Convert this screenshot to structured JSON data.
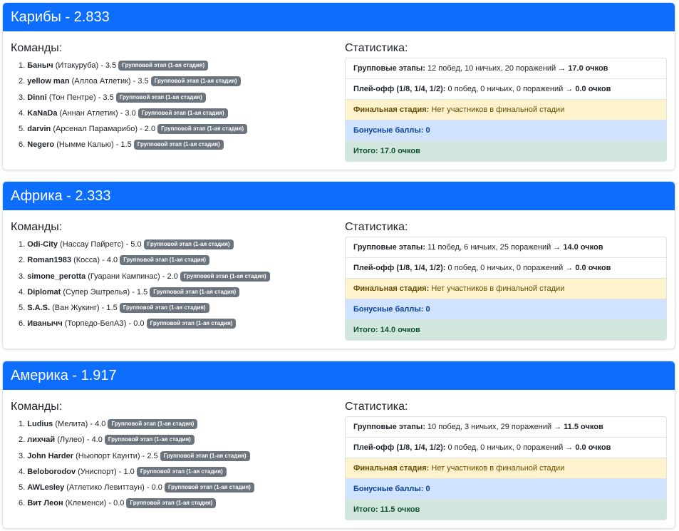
{
  "regions": [
    {
      "title": "Карибы - 2.833",
      "teams_heading": "Команды:",
      "stats_heading": "Статистика:",
      "teams": [
        {
          "num": "1.",
          "name": "Баныч",
          "club": "(Итакуруба)",
          "score": "- 3.5",
          "badge": "Групповой этап (1-ая стадия)"
        },
        {
          "num": "2.",
          "name": "yellow man",
          "club": "(Аллоа Атлетик)",
          "score": "- 3.5",
          "badge": "Групповой этап (1-ая стадия)"
        },
        {
          "num": "3.",
          "name": "Dinni",
          "club": "(Тон Пентре)",
          "score": "- 3.5",
          "badge": "Групповой этап (1-ая стадия)"
        },
        {
          "num": "4.",
          "name": "KaNaDa",
          "club": "(Аннан Атлетик)",
          "score": "- 3.0",
          "badge": "Групповой этап (1-ая стадия)"
        },
        {
          "num": "5.",
          "name": "darvin",
          "club": "(Арсенал Парамарибо)",
          "score": "- 2.0",
          "badge": "Групповой этап (1-ая стадия)"
        },
        {
          "num": "6.",
          "name": "Negero",
          "club": "(Нымме Калью)",
          "score": "- 1.5",
          "badge": "Групповой этап (1-ая стадия)"
        }
      ],
      "stats": {
        "group_label": "Групповые этапы:",
        "group_text": "12 побед, 10 ничьих, 20 поражений →",
        "group_points": "17.0 очков",
        "playoff_label": "Плей-офф (1/8, 1/4, 1/2):",
        "playoff_text": "0 побед, 0 ничьих, 0 поражений →",
        "playoff_points": "0.0 очков",
        "final_label": "Финальная стадия:",
        "final_text": "Нет участников в финальной стадии",
        "bonus_label": "Бонусные баллы:",
        "bonus_value": "0",
        "total_label": "Итого:",
        "total_value": "17.0 очков"
      }
    },
    {
      "title": "Африка - 2.333",
      "teams_heading": "Команды:",
      "stats_heading": "Статистика:",
      "teams": [
        {
          "num": "1.",
          "name": "Odi-City",
          "club": "(Нассау Пайретс)",
          "score": "- 5.0",
          "badge": "Групповой этап (1-ая стадия)"
        },
        {
          "num": "2.",
          "name": "Roman1983",
          "club": "(Косса)",
          "score": "- 4.0",
          "badge": "Групповой этап (1-ая стадия)"
        },
        {
          "num": "3.",
          "name": "simone_perotta",
          "club": "(Гуарани Кампинас)",
          "score": "- 2.0",
          "badge": "Групповой этап (1-ая стадия)"
        },
        {
          "num": "4.",
          "name": "Diplomat",
          "club": "(Супер Эштрелья)",
          "score": "- 1.5",
          "badge": "Групповой этап (1-ая стадия)"
        },
        {
          "num": "5.",
          "name": "S.A.S.",
          "club": "(Ван Жукинг)",
          "score": "- 1.5",
          "badge": "Групповой этап (1-ая стадия)"
        },
        {
          "num": "6.",
          "name": "Иванычч",
          "club": "(Торпедо-БелАЗ)",
          "score": "- 0.0",
          "badge": "Групповой этап (1-ая стадия)"
        }
      ],
      "stats": {
        "group_label": "Групповые этапы:",
        "group_text": "11 побед, 6 ничьих, 25 поражений →",
        "group_points": "14.0 очков",
        "playoff_label": "Плей-офф (1/8, 1/4, 1/2):",
        "playoff_text": "0 побед, 0 ничьих, 0 поражений →",
        "playoff_points": "0.0 очков",
        "final_label": "Финальная стадия:",
        "final_text": "Нет участников в финальной стадии",
        "bonus_label": "Бонусные баллы:",
        "bonus_value": "0",
        "total_label": "Итого:",
        "total_value": "14.0 очков"
      }
    },
    {
      "title": "Америка - 1.917",
      "teams_heading": "Команды:",
      "stats_heading": "Статистика:",
      "teams": [
        {
          "num": "1.",
          "name": "Ludius",
          "club": "(Мелита)",
          "score": "- 4.0",
          "badge": "Групповой этап (1-ая стадия)"
        },
        {
          "num": "2.",
          "name": "лихчай",
          "club": "(Лулео)",
          "score": "- 4.0",
          "badge": "Групповой этап (1-ая стадия)"
        },
        {
          "num": "3.",
          "name": "John Harder",
          "club": "(Ньюпорт Каунти)",
          "score": "- 2.5",
          "badge": "Групповой этап (1-ая стадия)"
        },
        {
          "num": "4.",
          "name": "Beloborodov",
          "club": "(Униспорт)",
          "score": "- 1.0",
          "badge": "Групповой этап (1-ая стадия)"
        },
        {
          "num": "5.",
          "name": "AWLesley",
          "club": "(Атлетико Левиттаун)",
          "score": "- 0.0",
          "badge": "Групповой этап (1-ая стадия)"
        },
        {
          "num": "6.",
          "name": "Вит Леон",
          "club": "(Клеменси)",
          "score": "- 0.0",
          "badge": "Групповой этап (1-ая стадия)"
        }
      ],
      "stats": {
        "group_label": "Групповые этапы:",
        "group_text": "10 побед, 3 ничьих, 29 поражений →",
        "group_points": "11.5 очков",
        "playoff_label": "Плей-офф (1/8, 1/4, 1/2):",
        "playoff_text": "0 побед, 0 ничьих, 0 поражений →",
        "playoff_points": "0.0 очков",
        "final_label": "Финальная стадия:",
        "final_text": "Нет участников в финальной стадии",
        "bonus_label": "Бонусные баллы:",
        "bonus_value": "0",
        "total_label": "Итого:",
        "total_value": "11.5 очков"
      }
    }
  ],
  "colors": {
    "header": "#0d6efd",
    "badge": "#6c757d",
    "warning": "#fff3cd",
    "info": "#cfe2ff",
    "success": "#d1e7dd"
  }
}
